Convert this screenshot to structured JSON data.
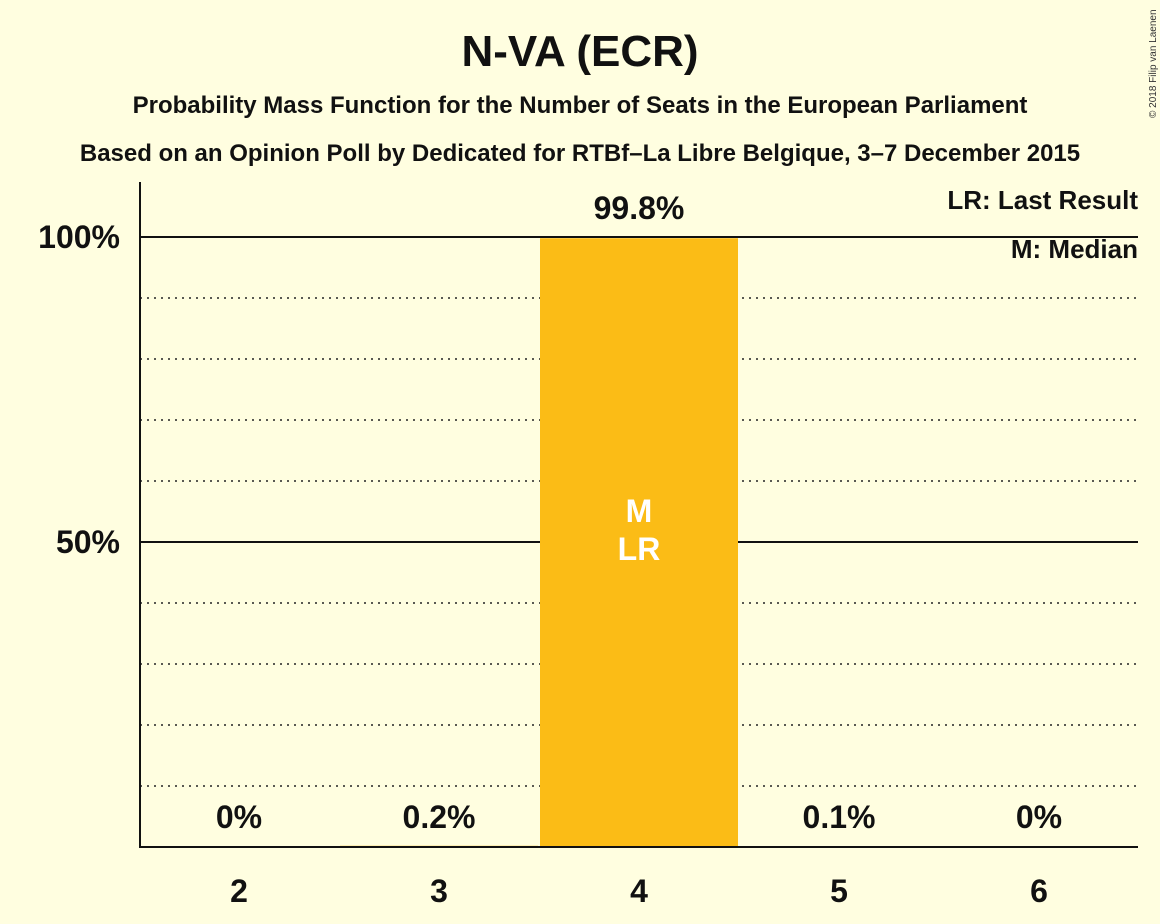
{
  "chart_data": {
    "type": "bar",
    "title": "N-VA (ECR)",
    "subtitle": "Probability Mass Function for the Number of Seats in the European Parliament",
    "subtitle2": "Based on an Opinion Poll by Dedicated for RTBf–La Libre Belgique, 3–7 December 2015",
    "categories": [
      "2",
      "3",
      "4",
      "5",
      "6"
    ],
    "values": [
      0,
      0.2,
      99.8,
      0.1,
      0
    ],
    "value_labels": [
      "0%",
      "0.2%",
      "99.8%",
      "0.1%",
      "0%"
    ],
    "ylim": [
      0,
      100
    ],
    "yticks": [
      {
        "value": 50,
        "label": "50%"
      },
      {
        "value": 100,
        "label": "100%"
      }
    ],
    "minor_grid_step": 10,
    "grid": true,
    "bar_color": "#FBBC16",
    "bar_markers": [
      {
        "category": "4",
        "lines": [
          "M",
          "LR"
        ]
      }
    ],
    "legend": [
      "LR: Last Result",
      "M: Median"
    ],
    "legend_position": "top-right"
  },
  "copyright": "© 2018 Filip van Laenen"
}
